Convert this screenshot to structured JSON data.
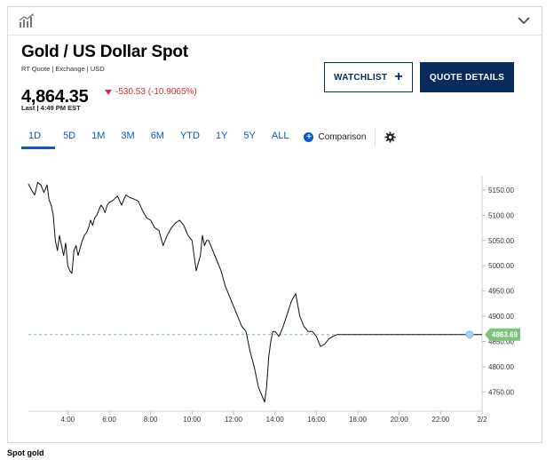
{
  "header": {
    "title": "Gold / US Dollar Spot",
    "subtitle": "RT Quote | Exchange | USD",
    "price": "4,864.35",
    "change": "-530.53 (-10.9065%)",
    "last_updated": "Last | 4:49 PM EST"
  },
  "buttons": {
    "watchlist": "WATCHLIST",
    "quote_details": "QUOTE DETAILS"
  },
  "ranges": [
    "1D",
    "5D",
    "1M",
    "3M",
    "6M",
    "YTD",
    "1Y",
    "5Y",
    "ALL"
  ],
  "active_range": "1D",
  "comparison_label": "Comparison",
  "colors": {
    "accent": "#0a58ca",
    "brand_dark": "#0a2a5e",
    "negative": "#d32f2f",
    "last_price": "#7cc47a"
  },
  "chart_data": {
    "type": "line",
    "title": "",
    "xlabel": "",
    "ylabel": "",
    "x_ticks": [
      "4:00",
      "6:00",
      "8:00",
      "10:00",
      "12:00",
      "14:00",
      "16:00",
      "18:00",
      "20:00",
      "22:00",
      "2/2"
    ],
    "y_ticks": [
      "5150.00",
      "5100.00",
      "5050.00",
      "5000.00",
      "4950.00",
      "4900.00",
      "4850.00",
      "4800.00",
      "4750.00"
    ],
    "ylim": [
      4712,
      5178
    ],
    "xlim_hours": [
      2.1,
      24.0
    ],
    "last_price_label": "4863.69",
    "reference_level": 4863.69,
    "series": [
      {
        "x": [
          2.1,
          2.25,
          2.4,
          2.55,
          2.7,
          2.85,
          3.0,
          3.1,
          3.2,
          3.3,
          3.4,
          3.5,
          3.6,
          3.7,
          3.8,
          3.9,
          4.0,
          4.1,
          4.2,
          4.3,
          4.4,
          4.5,
          4.6,
          4.7,
          4.8,
          4.9,
          5.0,
          5.1,
          5.2,
          5.3,
          5.4,
          5.5,
          5.6,
          5.7,
          5.8,
          5.9,
          6.0,
          6.2,
          6.4,
          6.6,
          6.8,
          7.0,
          7.2,
          7.4,
          7.6,
          7.8,
          8.0,
          8.2,
          8.4,
          8.6,
          8.8,
          9.0,
          9.2,
          9.4,
          9.6,
          9.8,
          10.0,
          10.2,
          10.4,
          10.5,
          10.6,
          10.7,
          10.8,
          11.0,
          11.2,
          11.4,
          11.6,
          11.8,
          12.0,
          12.2,
          12.4,
          12.6,
          12.8,
          13.0,
          13.1,
          13.2,
          13.3,
          13.4,
          13.5,
          13.6,
          13.7,
          13.8,
          13.9,
          14.0,
          14.2,
          14.4,
          14.6,
          14.8,
          15.0,
          15.2,
          15.4,
          15.6,
          15.8,
          16.0,
          16.2,
          16.4,
          16.6,
          16.8,
          17.0,
          17.5,
          18.0,
          19.0,
          20.0,
          21.0,
          22.0,
          23.0,
          24.0
        ],
        "y": [
          5162,
          5150,
          5140,
          5165,
          5160,
          5145,
          5160,
          5130,
          5120,
          5100,
          5050,
          5030,
          5060,
          5040,
          5020,
          5045,
          5000,
          4990,
          4985,
          5030,
          5040,
          5020,
          5035,
          5050,
          5060,
          5065,
          5075,
          5090,
          5080,
          5095,
          5100,
          5110,
          5120,
          5115,
          5105,
          5120,
          5125,
          5130,
          5138,
          5120,
          5140,
          5135,
          5132,
          5128,
          5110,
          5095,
          5090,
          5075,
          5070,
          5040,
          5060,
          5075,
          5085,
          5090,
          5080,
          5060,
          5050,
          4990,
          5020,
          5060,
          5040,
          5050,
          5050,
          5030,
          5010,
          4990,
          4960,
          4940,
          4920,
          4900,
          4880,
          4870,
          4830,
          4800,
          4780,
          4760,
          4750,
          4740,
          4730,
          4760,
          4820,
          4850,
          4870,
          4870,
          4860,
          4880,
          4905,
          4930,
          4945,
          4900,
          4880,
          4870,
          4870,
          4860,
          4840,
          4845,
          4855,
          4860,
          4863.69,
          4863.69,
          4863.69,
          4863.69,
          4863.69,
          4863.69,
          4863.69,
          4863.69,
          4863.69
        ]
      }
    ]
  },
  "footer_caption": "Spot gold"
}
